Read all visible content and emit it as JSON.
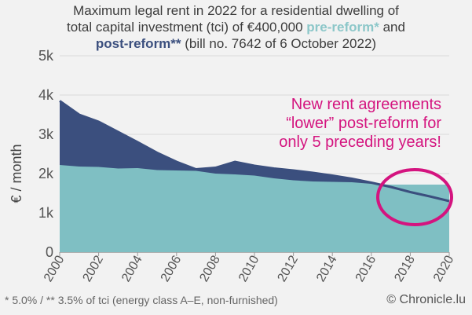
{
  "title": {
    "line1": "Maximum legal rent in 2022 for a residential dwelling of",
    "line2": "total capital investment (tci) of €400,000",
    "pre_label": "pre-reform*",
    "and": "and",
    "post_label": "post-reform**",
    "line3_rest": "(bill no. 7642 of 6 October 2022)"
  },
  "annotation": [
    "New rent agreements",
    "“lower” post-reform for",
    "only 5 preceding years!"
  ],
  "footnote": "* 5.0% / ** 3.5% of tci (energy class A–E, non-furnished)",
  "credit": "© Chronicle.lu",
  "colors": {
    "pre": "#7fbfc3",
    "post": "#3b4f7e",
    "annotation": "#d4147f"
  },
  "chart_data": {
    "type": "area",
    "ylabel": "€ / month",
    "xlim": [
      2000,
      2020
    ],
    "ylim": [
      0,
      5000
    ],
    "x_ticks": [
      2000,
      2002,
      2004,
      2006,
      2008,
      2010,
      2012,
      2014,
      2016,
      2018,
      2020
    ],
    "y_ticks": [
      {
        "value": 0,
        "label": "0"
      },
      {
        "value": 1000,
        "label": "1k"
      },
      {
        "value": 2000,
        "label": "2k"
      },
      {
        "value": 3000,
        "label": "3k"
      },
      {
        "value": 4000,
        "label": "4k"
      },
      {
        "value": 5000,
        "label": "5k"
      }
    ],
    "x": [
      2000,
      2001,
      2002,
      2003,
      2004,
      2005,
      2006,
      2007,
      2008,
      2009,
      2010,
      2011,
      2012,
      2013,
      2014,
      2015,
      2016,
      2017,
      2018,
      2019,
      2020
    ],
    "series": [
      {
        "name": "pre-reform*",
        "values": [
          2220,
          2180,
          2170,
          2130,
          2140,
          2090,
          2080,
          2070,
          2000,
          1980,
          1950,
          1880,
          1830,
          1800,
          1790,
          1780,
          1740,
          1720,
          1720,
          1720,
          1720
        ]
      },
      {
        "name": "post-reform**",
        "values": [
          3850,
          3500,
          3320,
          3060,
          2800,
          2530,
          2300,
          2110,
          2150,
          2300,
          2200,
          2130,
          2080,
          2020,
          1950,
          1870,
          1770,
          1660,
          1530,
          1420,
          1300
        ]
      }
    ]
  }
}
